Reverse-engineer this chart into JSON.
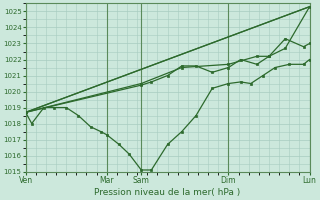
{
  "title": "Pression niveau de la mer( hPa )",
  "bg_color": "#cce8dc",
  "grid_color": "#a8ccc0",
  "line_color": "#2d6a2d",
  "vline_color": "#5a8a5a",
  "ylim": [
    1015,
    1025.5
  ],
  "yticks": [
    1015,
    1016,
    1017,
    1018,
    1019,
    1020,
    1021,
    1022,
    1023,
    1024,
    1025
  ],
  "xlim": [
    0,
    7
  ],
  "xtick_positions": [
    0,
    2.0,
    2.85,
    5.0,
    7.0
  ],
  "xtick_labels": [
    "Ven",
    "Mar",
    "Sam",
    "Dim",
    "Lun"
  ],
  "vlines": [
    0,
    2.0,
    2.85,
    5.0,
    7.0
  ],
  "series": [
    {
      "x": [
        0.0,
        0.15,
        0.45,
        0.7,
        1.0,
        1.3,
        1.6,
        1.85,
        2.0,
        2.3,
        2.55,
        2.85,
        3.1,
        3.5,
        3.85,
        4.2,
        4.6,
        5.0,
        5.3,
        5.55,
        5.85,
        6.15,
        6.5,
        6.85,
        7.0
      ],
      "y": [
        1018.7,
        1018.0,
        1019.0,
        1019.0,
        1019.0,
        1018.5,
        1017.8,
        1017.5,
        1017.3,
        1016.7,
        1016.1,
        1015.1,
        1015.1,
        1016.7,
        1017.5,
        1018.5,
        1020.2,
        1020.5,
        1020.6,
        1020.5,
        1021.0,
        1021.5,
        1021.7,
        1021.7,
        1022.0
      ]
    },
    {
      "x": [
        0.0,
        7.0
      ],
      "y": [
        1018.7,
        1025.3
      ]
    },
    {
      "x": [
        0.0,
        7.0
      ],
      "y": [
        1018.7,
        1025.3
      ]
    },
    {
      "x": [
        0.0,
        2.85,
        3.1,
        3.5,
        3.85,
        4.2,
        4.6,
        5.0,
        5.3,
        5.7,
        6.0,
        6.4,
        6.85,
        7.0
      ],
      "y": [
        1018.7,
        1020.4,
        1020.6,
        1021.0,
        1021.6,
        1021.6,
        1021.2,
        1021.5,
        1022.0,
        1021.7,
        1022.2,
        1023.3,
        1022.8,
        1023.0
      ]
    },
    {
      "x": [
        0.0,
        2.85,
        3.85,
        5.0,
        5.7,
        6.0,
        6.4,
        7.0
      ],
      "y": [
        1018.7,
        1020.5,
        1021.5,
        1021.7,
        1022.2,
        1022.2,
        1022.7,
        1025.3
      ]
    }
  ]
}
